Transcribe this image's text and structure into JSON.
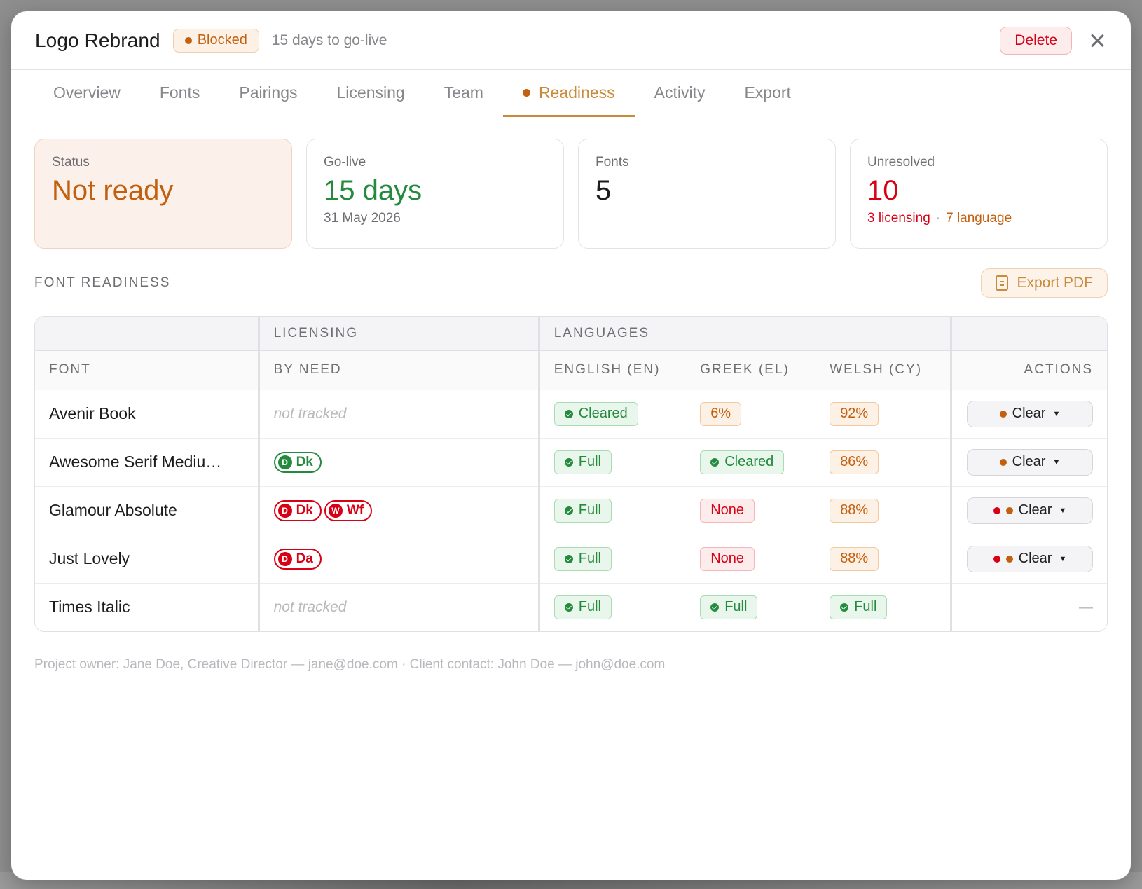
{
  "header": {
    "title": "Logo Rebrand",
    "status": "Blocked",
    "subtitle": "15 days to go-live",
    "delete_label": "Delete"
  },
  "tabs": [
    {
      "label": "Overview"
    },
    {
      "label": "Fonts"
    },
    {
      "label": "Pairings"
    },
    {
      "label": "Licensing"
    },
    {
      "label": "Team"
    },
    {
      "label": "Readiness",
      "active": true
    },
    {
      "label": "Activity"
    },
    {
      "label": "Export"
    }
  ],
  "cards": {
    "status": {
      "label": "Status",
      "value": "Not ready"
    },
    "golive": {
      "label": "Go-live",
      "value": "15 days",
      "sub": "31 May 2026"
    },
    "fonts": {
      "label": "Fonts",
      "value": "5"
    },
    "unresolved": {
      "label": "Unresolved",
      "value": "10",
      "sub_licensing": "3 licensing",
      "sub_sep": "·",
      "sub_language": "7 language"
    }
  },
  "section": {
    "title": "FONT READINESS",
    "export_label": "Export PDF"
  },
  "table": {
    "groups": {
      "licensing": "LICENSING",
      "languages": "LANGUAGES"
    },
    "headers": {
      "font": "FONT",
      "by_need": "BY NEED",
      "en": "ENGLISH (EN)",
      "el": "GREEK (EL)",
      "cy": "WELSH (CY)",
      "actions": "ACTIONS"
    },
    "rows": [
      {
        "font": "Avenir Book",
        "licensing": "not tracked",
        "en": "Cleared",
        "el": "6%",
        "cy": "92%",
        "action": "Clear"
      },
      {
        "font": "Awesome Serif Mediu…",
        "lic_1_letter": "D",
        "lic_1_text": "Dk",
        "en": "Full",
        "el": "Cleared",
        "cy": "86%",
        "action": "Clear"
      },
      {
        "font": "Glamour Absolute",
        "lic_1_letter": "D",
        "lic_1_text": "Dk",
        "lic_2_letter": "W",
        "lic_2_text": "Wf",
        "en": "Full",
        "el": "None",
        "cy": "88%",
        "action": "Clear"
      },
      {
        "font": "Just Lovely",
        "lic_1_letter": "D",
        "lic_1_text": "Da",
        "en": "Full",
        "el": "None",
        "cy": "88%",
        "action": "Clear"
      },
      {
        "font": "Times Italic",
        "licensing": "not tracked",
        "en": "Full",
        "el": "Full",
        "cy": "Full",
        "action": "—"
      }
    ]
  },
  "footer": "Project owner: Jane Doe, Creative Director — jane@doe.com · Client contact: John Doe — john@doe.com",
  "colors": {
    "accent": "#c98a3c",
    "warning": "#c2600f",
    "danger": "#d70015",
    "success": "#248a3d"
  }
}
